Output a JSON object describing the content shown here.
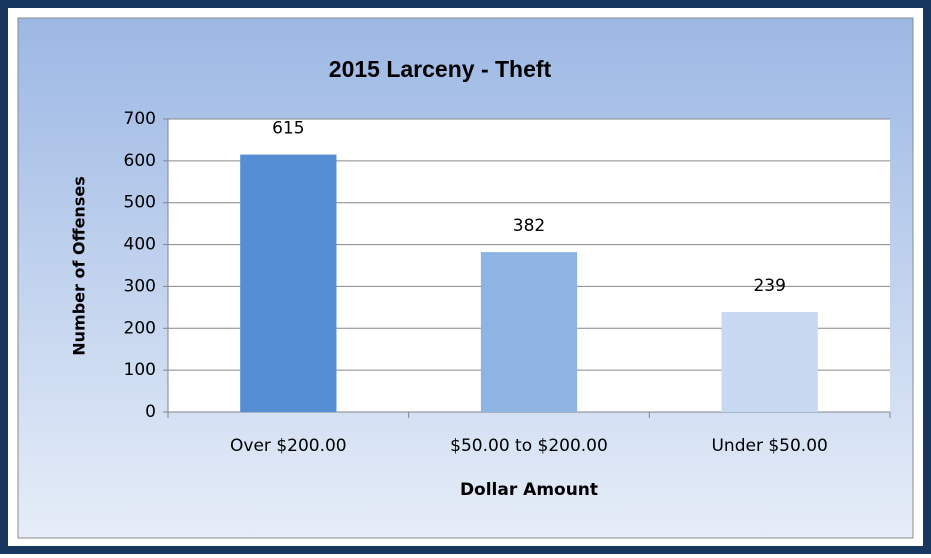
{
  "chart_data": {
    "type": "bar",
    "title": "2015 Larceny - Theft",
    "x_label": "Dollar Amount",
    "y_label": "Number of Offenses",
    "categories": [
      "Over $200.00",
      "$50.00 to $200.00",
      "Under $50.00"
    ],
    "values": [
      615,
      382,
      239
    ],
    "colors": [
      "#558ed5",
      "#8eb4e3",
      "#c6d9f1"
    ],
    "ylim": [
      0,
      700
    ],
    "yticks": [
      0,
      100,
      200,
      300,
      400,
      500,
      600,
      700
    ],
    "grid": true
  }
}
